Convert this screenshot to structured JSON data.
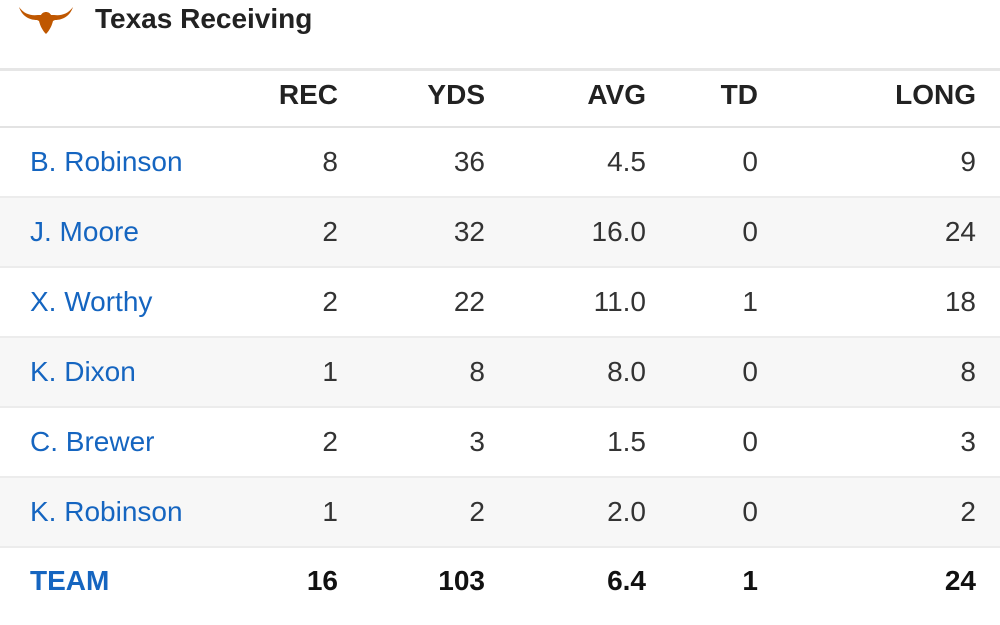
{
  "header": {
    "logo_icon": "longhorn-icon",
    "logo_color": "#bf5700",
    "title": "Texas Receiving"
  },
  "table": {
    "columns": [
      "",
      "REC",
      "YDS",
      "AVG",
      "TD",
      "LONG"
    ],
    "rows": [
      {
        "name": "B. Robinson",
        "rec": "8",
        "yds": "36",
        "avg": "4.5",
        "td": "0",
        "long": "9"
      },
      {
        "name": "J. Moore",
        "rec": "2",
        "yds": "32",
        "avg": "16.0",
        "td": "0",
        "long": "24"
      },
      {
        "name": "X. Worthy",
        "rec": "2",
        "yds": "22",
        "avg": "11.0",
        "td": "1",
        "long": "18"
      },
      {
        "name": "K. Dixon",
        "rec": "1",
        "yds": "8",
        "avg": "8.0",
        "td": "0",
        "long": "8"
      },
      {
        "name": "C. Brewer",
        "rec": "2",
        "yds": "3",
        "avg": "1.5",
        "td": "0",
        "long": "3"
      },
      {
        "name": "K. Robinson",
        "rec": "1",
        "yds": "2",
        "avg": "2.0",
        "td": "0",
        "long": "2"
      }
    ],
    "totals": {
      "name": "TEAM",
      "rec": "16",
      "yds": "103",
      "avg": "6.4",
      "td": "1",
      "long": "24"
    }
  },
  "colors": {
    "player_link": "#1565c0"
  }
}
